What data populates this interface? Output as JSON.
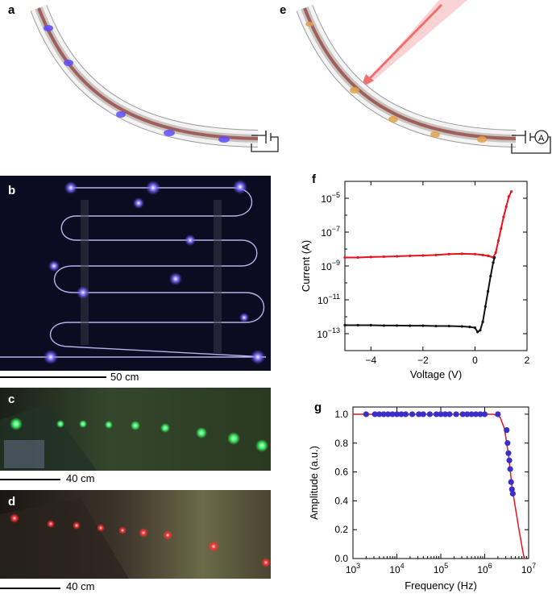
{
  "panels": {
    "a": "a",
    "b": "b",
    "c": "c",
    "d": "d",
    "e": "e",
    "f": "f",
    "g": "g"
  },
  "ammeter_symbol": "A",
  "scale_bars": {
    "b": "50 cm",
    "c": "40 cm",
    "d": "40 cm"
  },
  "colors": {
    "blue_emission": "#5a4dff",
    "green_emission": "#3cff6a",
    "red_emission": "#ff3030",
    "fiber_core": "#a0605a",
    "light_beam": "#f07070",
    "plot_red": "#e8121e",
    "plot_blue": "#3a2fc8"
  },
  "chart_data": [
    {
      "panel": "f",
      "type": "scatter",
      "title": "",
      "xlabel": "Voltage (V)",
      "ylabel": "Current (A)",
      "xlim": [
        -5,
        2
      ],
      "ylim_exponent": [
        -14,
        -4
      ],
      "yscale": "log",
      "x_ticks": [
        "−4",
        "−2",
        "0",
        "2"
      ],
      "x_tick_values": [
        -4,
        -2,
        0,
        2
      ],
      "y_ticks": [
        {
          "base": "10",
          "exp": "−5",
          "value": -5
        },
        {
          "base": "10",
          "exp": "−7",
          "value": -7
        },
        {
          "base": "10",
          "exp": "−9",
          "value": -9
        },
        {
          "base": "10",
          "exp": "−11",
          "value": -11
        },
        {
          "base": "10",
          "exp": "−13",
          "value": -13
        }
      ],
      "series": [
        {
          "color": "#e8121e",
          "x": [
            -5.0,
            -4.5,
            -4.0,
            -3.5,
            -3.0,
            -2.5,
            -2.0,
            -1.5,
            -1.0,
            -0.5,
            0.0,
            0.3,
            0.5,
            0.7,
            0.8,
            0.9,
            1.0,
            1.1,
            1.2,
            1.3,
            1.4
          ],
          "log10_y": [
            -8.5,
            -8.5,
            -8.47,
            -8.45,
            -8.43,
            -8.4,
            -8.38,
            -8.35,
            -8.3,
            -8.28,
            -8.3,
            -8.35,
            -8.4,
            -8.5,
            -8.2,
            -7.5,
            -6.8,
            -6.1,
            -5.5,
            -4.9,
            -4.6
          ]
        },
        {
          "color": "#111111",
          "x": [
            -5.0,
            -4.5,
            -4.0,
            -3.5,
            -3.0,
            -2.5,
            -2.0,
            -1.5,
            -1.0,
            -0.5,
            -0.2,
            0.0,
            0.1,
            0.2,
            0.3,
            0.4,
            0.5,
            0.6,
            0.7,
            0.75
          ],
          "log10_y": [
            -12.5,
            -12.5,
            -12.5,
            -12.52,
            -12.52,
            -12.53,
            -12.53,
            -12.55,
            -12.55,
            -12.57,
            -12.6,
            -12.65,
            -12.9,
            -12.8,
            -12.3,
            -11.4,
            -10.5,
            -9.6,
            -8.8,
            -8.5
          ]
        }
      ]
    },
    {
      "panel": "g",
      "type": "line",
      "title": "",
      "xlabel": "Frequency (Hz)",
      "ylabel": "Amplitude (a.u.)",
      "xscale": "log",
      "xlim_exponent": [
        3,
        7
      ],
      "ylim": [
        0,
        1.05
      ],
      "x_ticks": [
        {
          "base": "10",
          "exp": "3",
          "value": 3
        },
        {
          "base": "10",
          "exp": "4",
          "value": 4
        },
        {
          "base": "10",
          "exp": "5",
          "value": 5
        },
        {
          "base": "10",
          "exp": "6",
          "value": 6
        },
        {
          "base": "10",
          "exp": "7",
          "value": 7
        }
      ],
      "y_ticks": [
        "0.0",
        "0.2",
        "0.4",
        "0.6",
        "0.8",
        "1.0"
      ],
      "y_tick_values": [
        0.0,
        0.2,
        0.4,
        0.6,
        0.8,
        1.0
      ],
      "series": [
        {
          "color": "#3a2fc8",
          "type": "scatter",
          "log10_x": [
            3.3,
            3.5,
            3.6,
            3.7,
            3.8,
            3.9,
            4.0,
            4.1,
            4.2,
            4.35,
            4.5,
            4.6,
            4.75,
            4.9,
            5.0,
            5.1,
            5.2,
            5.35,
            5.5,
            5.6,
            5.7,
            5.8,
            5.9,
            6.0,
            6.3,
            6.5,
            6.52,
            6.54,
            6.56,
            6.58,
            6.6,
            6.62,
            6.64
          ],
          "y": [
            1.0,
            1.0,
            1.0,
            1.0,
            1.0,
            1.0,
            1.0,
            1.0,
            1.0,
            1.0,
            1.0,
            1.0,
            1.0,
            1.0,
            1.0,
            1.0,
            1.0,
            1.0,
            1.0,
            1.0,
            1.0,
            1.0,
            1.0,
            1.0,
            1.0,
            0.89,
            0.8,
            0.73,
            0.68,
            0.62,
            0.53,
            0.48,
            0.45
          ]
        },
        {
          "color": "#e8121e",
          "type": "line",
          "log10_x": [
            3.0,
            4.0,
            5.0,
            6.0,
            6.2,
            6.35,
            6.45,
            6.55,
            6.62,
            6.7,
            6.78,
            6.85,
            6.9
          ],
          "y": [
            1.0,
            1.0,
            1.0,
            1.0,
            1.0,
            0.98,
            0.9,
            0.7,
            0.5,
            0.35,
            0.2,
            0.08,
            0.0
          ]
        }
      ]
    }
  ]
}
